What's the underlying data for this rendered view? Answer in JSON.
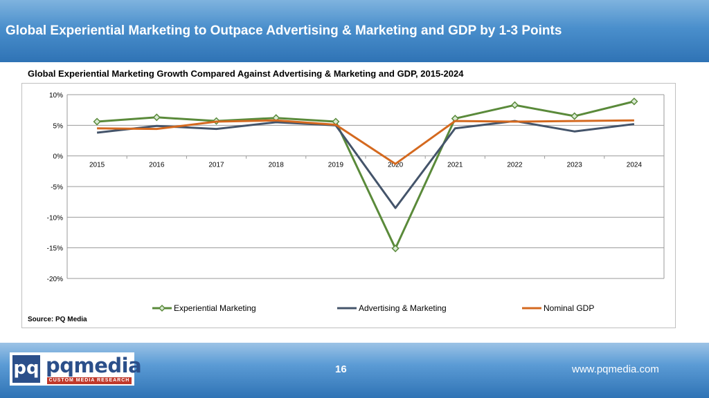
{
  "slide": {
    "title": "Global Experiential Marketing to Outpace Advertising & Marketing and GDP by 1-3 Points",
    "source": "Source: PQ Media",
    "page_number": "16",
    "website": "www.pqmedia.com",
    "logo": {
      "mark": "pq",
      "word": "pqmedia",
      "tagline": "CUSTOM MEDIA RESEARCH"
    }
  },
  "chart_data": {
    "type": "line",
    "title": "Global Experiential Marketing Growth Compared Against Advertising & Marketing and GDP, 2015-2024",
    "categories": [
      "2015",
      "2016",
      "2017",
      "2018",
      "2019",
      "2020",
      "2021",
      "2022",
      "2023",
      "2024"
    ],
    "series": [
      {
        "name": "Experiential Marketing",
        "color": "#5a8a3a",
        "marker": "diamond",
        "values": [
          5.6,
          6.3,
          5.7,
          6.2,
          5.6,
          -15.1,
          6.1,
          8.3,
          6.5,
          8.9
        ]
      },
      {
        "name": "Advertising & Marketing",
        "color": "#44546a",
        "marker": "none",
        "values": [
          3.8,
          4.9,
          4.4,
          5.5,
          5.0,
          -8.5,
          4.5,
          5.7,
          4.0,
          5.2
        ]
      },
      {
        "name": "Nominal GDP",
        "color": "#d4691f",
        "marker": "none",
        "values": [
          4.5,
          4.4,
          5.6,
          5.8,
          5.1,
          -1.3,
          5.7,
          5.6,
          5.7,
          5.8
        ]
      }
    ],
    "y_ticks": [
      "10%",
      "5%",
      "0%",
      "-5%",
      "-10%",
      "-15%",
      "-20%"
    ],
    "ylim": [
      -20,
      10
    ],
    "y_step": 5,
    "grid": true,
    "legend_position": "bottom"
  }
}
